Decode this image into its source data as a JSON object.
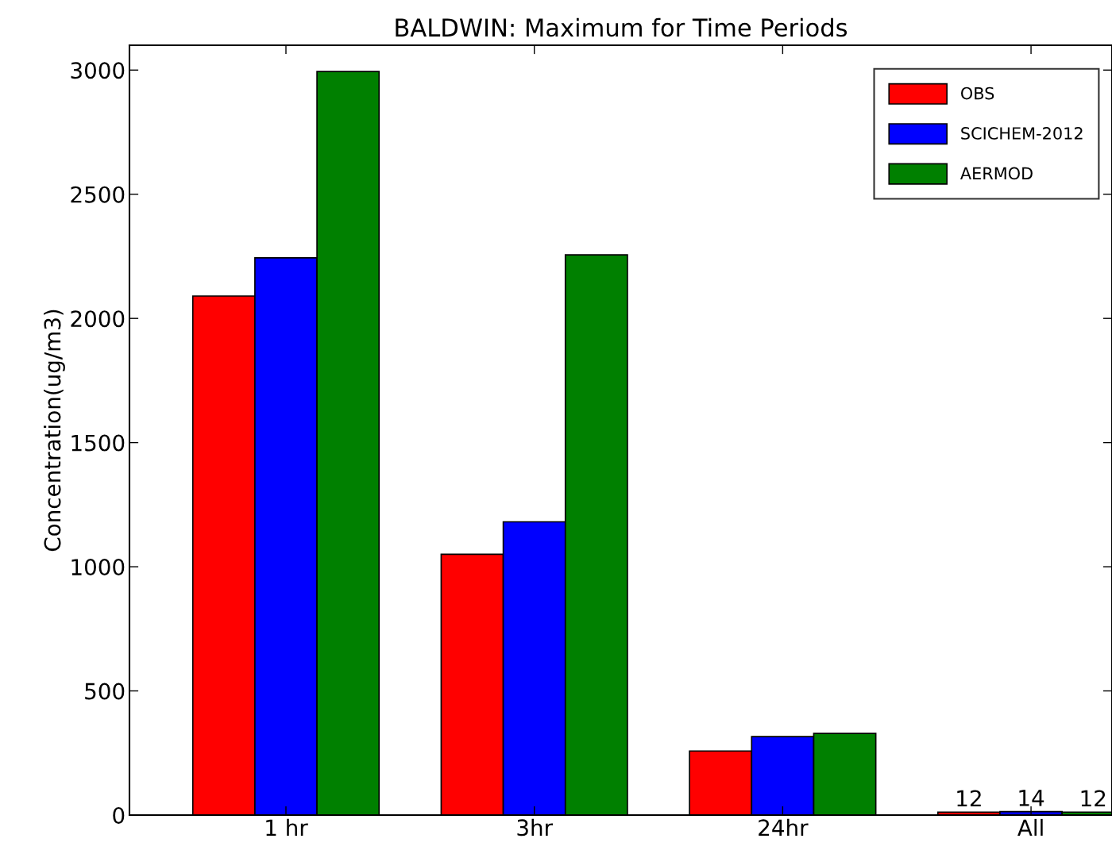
{
  "chart_data": {
    "type": "bar",
    "title": "BALDWIN: Maximum for Time Periods",
    "ylabel": "Concentration(ug/m3)",
    "categories": [
      "1 hr",
      "3hr",
      "24hr",
      "All"
    ],
    "series": [
      {
        "name": "OBS",
        "color": "#ff0000",
        "values": [
          2090,
          1050,
          258,
          12
        ],
        "value_labels": [
          null,
          null,
          null,
          "12"
        ]
      },
      {
        "name": "SCICHEM-2012",
        "color": "#0000ff",
        "values": [
          2244,
          1181,
          316,
          14
        ],
        "value_labels": [
          null,
          null,
          null,
          "14"
        ]
      },
      {
        "name": "AERMOD",
        "color": "#008000",
        "values": [
          2994,
          2256,
          329,
          12
        ],
        "value_labels": [
          null,
          null,
          null,
          "12"
        ]
      }
    ],
    "ylim": [
      0,
      3100
    ],
    "yticks": [
      0,
      500,
      1000,
      1500,
      2000,
      2500,
      3000
    ],
    "grid": false,
    "legend": "top right"
  }
}
